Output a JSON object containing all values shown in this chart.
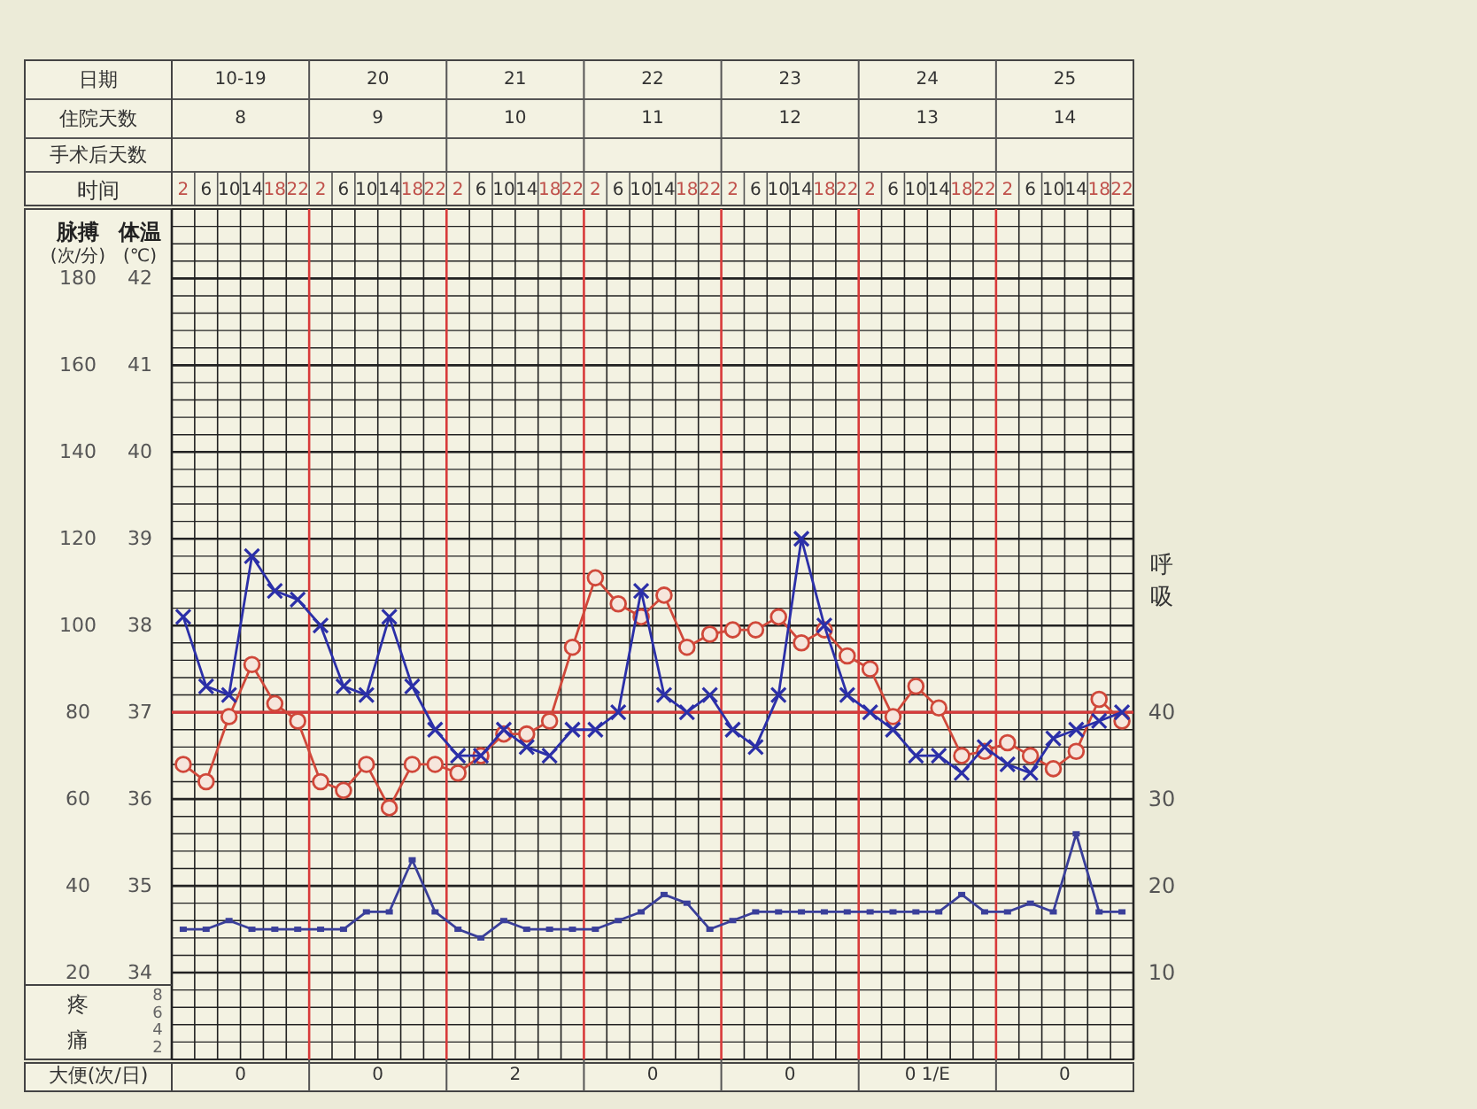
{
  "chart_data": {
    "type": "line",
    "categories": [
      "2",
      "6",
      "10",
      "14",
      "18",
      "22",
      "2",
      "6",
      "10",
      "14",
      "18",
      "22",
      "2",
      "6",
      "10",
      "14",
      "18",
      "22",
      "2",
      "6",
      "10",
      "14",
      "18",
      "22",
      "2",
      "6",
      "10",
      "14",
      "18",
      "22",
      "2",
      "6",
      "10",
      "14",
      "18",
      "22",
      "2",
      "6",
      "10",
      "14",
      "18",
      "22"
    ],
    "series": [
      {
        "axis": "y2",
        "color": "#2b2fa8",
        "marker": "cross",
        "values": [
          38.1,
          37.3,
          37.2,
          38.8,
          38.4,
          38.3,
          38.0,
          37.3,
          37.2,
          38.1,
          37.3,
          36.8,
          36.5,
          36.5,
          36.8,
          36.6,
          36.5,
          36.8,
          36.8,
          37.0,
          38.4,
          37.2,
          37.0,
          37.2,
          36.8,
          36.6,
          37.2,
          39.0,
          38.0,
          37.2,
          37.0,
          36.8,
          36.5,
          36.5,
          36.3,
          36.6,
          36.4,
          36.3,
          36.7,
          36.8,
          36.9,
          37.0
        ]
      },
      {
        "axis": "y",
        "color": "#d0483a",
        "marker": "circle",
        "values": [
          68,
          64,
          79,
          91,
          82,
          78,
          64,
          62,
          68,
          58,
          68,
          68,
          66,
          70,
          75,
          75,
          78,
          95,
          111,
          105,
          102,
          107,
          95,
          98,
          99,
          99,
          102,
          96,
          99,
          93,
          90,
          79,
          86,
          81,
          70,
          71,
          73,
          70,
          67,
          71,
          83,
          78
        ]
      },
      {
        "axis": "y3",
        "color": "#3a3f9a",
        "marker": "square",
        "values": [
          15,
          15,
          16,
          15,
          15,
          15,
          15,
          15,
          17,
          17,
          23,
          17,
          15,
          14,
          16,
          15,
          15,
          15,
          15,
          16,
          17,
          19,
          18,
          15,
          16,
          17,
          17,
          17,
          17,
          17,
          17,
          17,
          17,
          17,
          19,
          17,
          17,
          18,
          17,
          26,
          17,
          17
        ]
      }
    ],
    "ylabel": "脉搏",
    "y2label": "体温",
    "y3label": "呼吸",
    "ylim": [
      0,
      196
    ],
    "yticks": [
      {
        "value": 0,
        "label": null
      },
      {
        "value": 4,
        "label": null
      },
      {
        "value": 8,
        "label": null
      },
      {
        "value": 12,
        "label": null
      },
      {
        "value": 16,
        "label": null
      },
      20,
      {
        "value": 24,
        "label": null
      },
      {
        "value": 28,
        "label": null
      },
      {
        "value": 32,
        "label": null
      },
      {
        "value": 36,
        "label": null
      },
      40,
      {
        "value": 44,
        "label": null
      },
      {
        "value": 48,
        "label": null
      },
      {
        "value": 52,
        "label": null
      },
      {
        "value": 56,
        "label": null
      },
      60,
      {
        "value": 64,
        "label": null
      },
      {
        "value": 68,
        "label": null
      },
      {
        "value": 72,
        "label": null
      },
      {
        "value": 76,
        "label": null
      },
      80,
      {
        "value": 84,
        "label": null
      },
      {
        "value": 88,
        "label": null
      },
      {
        "value": 92,
        "label": null
      },
      {
        "value": 96,
        "label": null
      },
      100,
      {
        "value": 104,
        "label": null
      },
      {
        "value": 108,
        "label": null
      },
      {
        "value": 112,
        "label": null
      },
      {
        "value": 116,
        "label": null
      },
      120,
      {
        "value": 124,
        "label": null
      },
      {
        "value": 128,
        "label": null
      },
      {
        "value": 132,
        "label": null
      },
      {
        "value": 136,
        "label": null
      },
      140,
      {
        "value": 144,
        "label": null
      },
      {
        "value": 148,
        "label": null
      },
      {
        "value": 152,
        "label": null
      },
      {
        "value": 156,
        "label": null
      },
      160,
      {
        "value": 164,
        "label": null
      },
      {
        "value": 168,
        "label": null
      },
      {
        "value": 172,
        "label": null
      },
      {
        "value": 176,
        "label": null
      },
      180,
      {
        "value": 184,
        "label": null
      },
      {
        "value": 188,
        "label": null
      },
      {
        "value": 192,
        "label": null
      },
      {
        "value": 196,
        "label": null
      }
    ],
    "y2lim": [
      33,
      42.8
    ],
    "y2ticks": [
      34,
      35,
      36,
      37,
      38,
      39,
      40,
      41,
      42
    ],
    "y3lim": [
      0,
      98
    ],
    "y3ticks": [
      10,
      20,
      30,
      40
    ],
    "ref_lines": [
      {
        "axis": "y2",
        "value": 37,
        "color": "#d83a3a"
      }
    ],
    "grid": true,
    "annotations": [
      "日期",
      "10-19",
      "20",
      "21",
      "22",
      "23",
      "24",
      "25",
      "住院天数",
      "8",
      "9",
      "10",
      "11",
      "12",
      "13",
      "14",
      "手术后天数",
      "时间",
      "疼痛",
      "8",
      "6",
      "4",
      "2",
      "大便(次/日)",
      "0",
      "0",
      "2",
      "0",
      "0",
      "0 1/E",
      "0",
      "(次/分)",
      "(℃)"
    ]
  }
}
